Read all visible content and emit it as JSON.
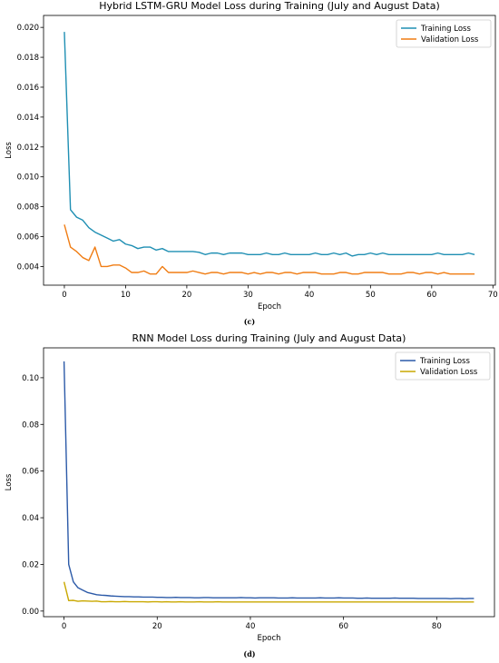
{
  "figures": [
    {
      "caption": "(c)"
    },
    {
      "caption": "(d)"
    }
  ],
  "chart_data": [
    {
      "type": "line",
      "title": "Hybrid LSTM-GRU Model Loss during Training (July and August Data)",
      "xlabel": "Epoch",
      "ylabel": "Loss",
      "xlim": [
        -3.4,
        70.4
      ],
      "ylim": [
        0.00275,
        0.0208
      ],
      "xticks": [
        0,
        10,
        20,
        30,
        40,
        50,
        60,
        70
      ],
      "xtick_labels": [
        "0",
        "10",
        "20",
        "30",
        "40",
        "50",
        "60",
        "70"
      ],
      "yticks": [
        0.004,
        0.006,
        0.008,
        0.01,
        0.012,
        0.014,
        0.016,
        0.018,
        0.02
      ],
      "ytick_labels": [
        "0.004",
        "0.006",
        "0.008",
        "0.010",
        "0.012",
        "0.014",
        "0.016",
        "0.018",
        "0.020"
      ],
      "legend_position": "top-right",
      "grid": false,
      "series": [
        {
          "name": "Training Loss",
          "color": "#1f8fb3",
          "x": [
            0,
            1,
            2,
            3,
            4,
            5,
            6,
            7,
            8,
            9,
            10,
            11,
            12,
            13,
            14,
            15,
            16,
            17,
            18,
            19,
            20,
            21,
            22,
            23,
            24,
            25,
            26,
            27,
            28,
            29,
            30,
            31,
            32,
            33,
            34,
            35,
            36,
            37,
            38,
            39,
            40,
            41,
            42,
            43,
            44,
            45,
            46,
            47,
            48,
            49,
            50,
            51,
            52,
            53,
            54,
            55,
            56,
            57,
            58,
            59,
            60,
            61,
            62,
            63,
            64,
            65,
            66,
            67
          ],
          "values": [
            0.0197,
            0.0078,
            0.0073,
            0.0071,
            0.0066,
            0.0063,
            0.0061,
            0.0059,
            0.0057,
            0.0058,
            0.0055,
            0.0054,
            0.0052,
            0.0053,
            0.0053,
            0.0051,
            0.0052,
            0.005,
            0.005,
            0.005,
            0.005,
            0.005,
            0.00495,
            0.0048,
            0.0049,
            0.0049,
            0.0048,
            0.0049,
            0.0049,
            0.0049,
            0.0048,
            0.0048,
            0.0048,
            0.0049,
            0.0048,
            0.0048,
            0.0049,
            0.0048,
            0.0048,
            0.0048,
            0.0048,
            0.0049,
            0.0048,
            0.0048,
            0.0049,
            0.0048,
            0.0049,
            0.0047,
            0.0048,
            0.0048,
            0.0049,
            0.0048,
            0.0049,
            0.0048,
            0.0048,
            0.0048,
            0.0048,
            0.0048,
            0.0048,
            0.0048,
            0.0048,
            0.0049,
            0.0048,
            0.0048,
            0.0048,
            0.0048,
            0.0049,
            0.0048
          ]
        },
        {
          "name": "Validation Loss",
          "color": "#f07d14",
          "x": [
            0,
            1,
            2,
            3,
            4,
            5,
            6,
            7,
            8,
            9,
            10,
            11,
            12,
            13,
            14,
            15,
            16,
            17,
            18,
            19,
            20,
            21,
            22,
            23,
            24,
            25,
            26,
            27,
            28,
            29,
            30,
            31,
            32,
            33,
            34,
            35,
            36,
            37,
            38,
            39,
            40,
            41,
            42,
            43,
            44,
            45,
            46,
            47,
            48,
            49,
            50,
            51,
            52,
            53,
            54,
            55,
            56,
            57,
            58,
            59,
            60,
            61,
            62,
            63,
            64,
            65,
            66,
            67
          ],
          "values": [
            0.0068,
            0.0053,
            0.005,
            0.0046,
            0.0044,
            0.0053,
            0.004,
            0.004,
            0.0041,
            0.0041,
            0.0039,
            0.0036,
            0.0036,
            0.0037,
            0.0035,
            0.0035,
            0.004,
            0.0036,
            0.0036,
            0.0036,
            0.0036,
            0.0037,
            0.0036,
            0.0035,
            0.0036,
            0.0036,
            0.0035,
            0.0036,
            0.0036,
            0.0036,
            0.0035,
            0.0036,
            0.0035,
            0.0036,
            0.0036,
            0.0035,
            0.0036,
            0.0036,
            0.0035,
            0.0036,
            0.0036,
            0.0036,
            0.0035,
            0.0035,
            0.0035,
            0.0036,
            0.0036,
            0.0035,
            0.0035,
            0.0036,
            0.0036,
            0.0036,
            0.0036,
            0.0035,
            0.0035,
            0.0035,
            0.0036,
            0.0036,
            0.0035,
            0.0036,
            0.0036,
            0.0035,
            0.0036,
            0.0035,
            0.0035,
            0.0035,
            0.0035,
            0.0035
          ]
        }
      ]
    },
    {
      "type": "line",
      "title": "RNN Model Loss during Training (July and August Data)",
      "xlabel": "Epoch",
      "ylabel": "Loss",
      "xlim": [
        -4.4,
        92.4
      ],
      "ylim": [
        -0.0024,
        0.1128
      ],
      "xticks": [
        0,
        20,
        40,
        60,
        80
      ],
      "xtick_labels": [
        "0",
        "20",
        "40",
        "60",
        "80"
      ],
      "yticks": [
        0.0,
        0.02,
        0.04,
        0.06,
        0.08,
        0.1
      ],
      "ytick_labels": [
        "0.00",
        "0.02",
        "0.04",
        "0.06",
        "0.08",
        "0.10"
      ],
      "legend_position": "top-right",
      "grid": false,
      "series": [
        {
          "name": "Training Loss",
          "color": "#2c5aa8",
          "x": [
            0,
            1,
            2,
            3,
            4,
            5,
            6,
            7,
            8,
            9,
            10,
            11,
            12,
            13,
            14,
            15,
            16,
            17,
            18,
            19,
            20,
            21,
            22,
            23,
            24,
            25,
            26,
            27,
            28,
            29,
            30,
            31,
            32,
            33,
            34,
            35,
            36,
            37,
            38,
            39,
            40,
            41,
            42,
            43,
            44,
            45,
            46,
            47,
            48,
            49,
            50,
            51,
            52,
            53,
            54,
            55,
            56,
            57,
            58,
            59,
            60,
            61,
            62,
            63,
            64,
            65,
            66,
            67,
            68,
            69,
            70,
            71,
            72,
            73,
            74,
            75,
            76,
            77,
            78,
            79,
            80,
            81,
            82,
            83,
            84,
            85,
            86,
            87,
            88
          ],
          "values": [
            0.107,
            0.02,
            0.0125,
            0.01,
            0.009,
            0.008,
            0.0075,
            0.007,
            0.0068,
            0.0067,
            0.0065,
            0.0064,
            0.0063,
            0.0062,
            0.0062,
            0.0061,
            0.0061,
            0.006,
            0.006,
            0.006,
            0.0059,
            0.0059,
            0.0058,
            0.0058,
            0.0059,
            0.0058,
            0.0058,
            0.0058,
            0.0057,
            0.0057,
            0.0058,
            0.0058,
            0.0057,
            0.0057,
            0.0057,
            0.0057,
            0.0057,
            0.0057,
            0.0058,
            0.0057,
            0.0057,
            0.0056,
            0.0057,
            0.0057,
            0.0057,
            0.0057,
            0.0056,
            0.0056,
            0.0056,
            0.0057,
            0.0056,
            0.0056,
            0.0056,
            0.0056,
            0.0056,
            0.0057,
            0.0056,
            0.0056,
            0.0056,
            0.0057,
            0.0056,
            0.0056,
            0.0056,
            0.0055,
            0.0055,
            0.0056,
            0.0055,
            0.0055,
            0.0055,
            0.0055,
            0.0055,
            0.0056,
            0.0055,
            0.0055,
            0.0055,
            0.0055,
            0.0054,
            0.0054,
            0.0054,
            0.0054,
            0.0054,
            0.0054,
            0.0054,
            0.0053,
            0.0054,
            0.0054,
            0.0053,
            0.0054,
            0.0054
          ]
        },
        {
          "name": "Validation Loss",
          "color": "#c9a800",
          "x": [
            0,
            1,
            2,
            3,
            4,
            5,
            6,
            7,
            8,
            9,
            10,
            11,
            12,
            13,
            14,
            15,
            16,
            17,
            18,
            19,
            20,
            21,
            22,
            23,
            24,
            25,
            26,
            27,
            28,
            29,
            30,
            31,
            32,
            33,
            34,
            35,
            36,
            37,
            38,
            39,
            40,
            41,
            42,
            43,
            44,
            45,
            46,
            47,
            48,
            49,
            50,
            51,
            52,
            53,
            54,
            55,
            56,
            57,
            58,
            59,
            60,
            61,
            62,
            63,
            64,
            65,
            66,
            67,
            68,
            69,
            70,
            71,
            72,
            73,
            74,
            75,
            76,
            77,
            78,
            79,
            80,
            81,
            82,
            83,
            84,
            85,
            86,
            87,
            88
          ],
          "values": [
            0.0125,
            0.0045,
            0.0046,
            0.0042,
            0.0044,
            0.0043,
            0.0042,
            0.0043,
            0.004,
            0.004,
            0.0041,
            0.004,
            0.004,
            0.0041,
            0.004,
            0.004,
            0.004,
            0.004,
            0.0039,
            0.004,
            0.004,
            0.0039,
            0.004,
            0.0039,
            0.0039,
            0.004,
            0.0039,
            0.0039,
            0.0039,
            0.004,
            0.0039,
            0.0039,
            0.0039,
            0.004,
            0.0039,
            0.0039,
            0.0039,
            0.0039,
            0.0039,
            0.0039,
            0.0039,
            0.0039,
            0.0039,
            0.0039,
            0.0039,
            0.0039,
            0.0039,
            0.0039,
            0.0039,
            0.0039,
            0.0039,
            0.0039,
            0.0039,
            0.0039,
            0.0039,
            0.0039,
            0.0039,
            0.0039,
            0.0039,
            0.0039,
            0.0039,
            0.0039,
            0.0039,
            0.0039,
            0.0039,
            0.0039,
            0.0039,
            0.0039,
            0.0039,
            0.0039,
            0.0039,
            0.0039,
            0.0039,
            0.0039,
            0.0039,
            0.0039,
            0.0039,
            0.0039,
            0.0039,
            0.0039,
            0.0039,
            0.0039,
            0.0039,
            0.0039,
            0.0039,
            0.0039,
            0.0039,
            0.0039,
            0.0039
          ]
        }
      ]
    }
  ]
}
